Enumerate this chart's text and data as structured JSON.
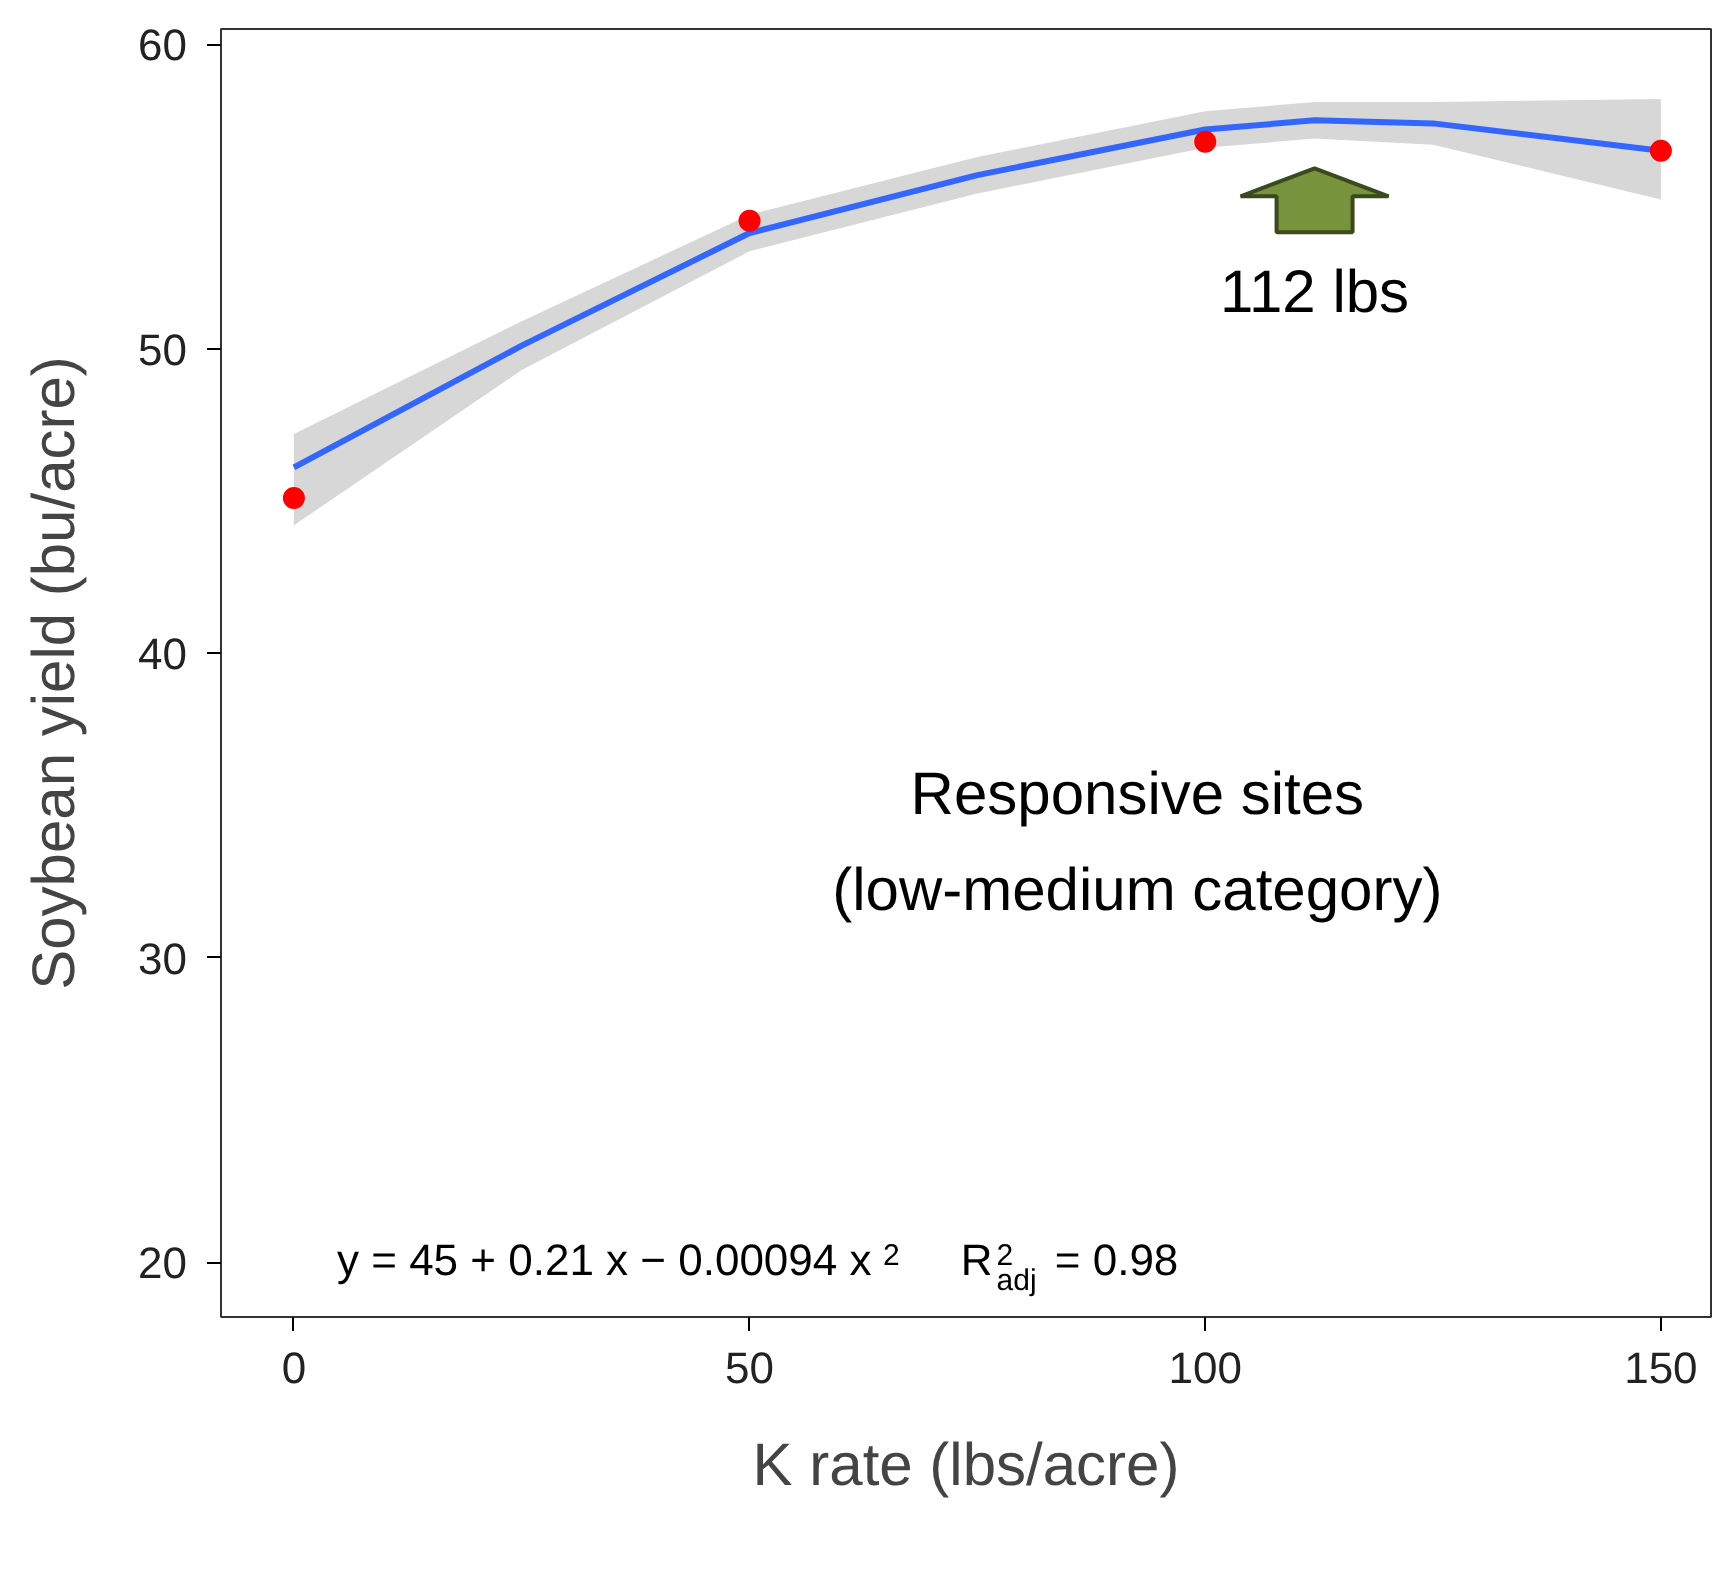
{
  "chart_data": {
    "type": "scatter",
    "xlabel": "K rate (lbs/acre)",
    "ylabel": "Soybean yield (bu/acre)",
    "xlim": [
      -8,
      155.5
    ],
    "ylim": [
      18.2,
      60.5
    ],
    "xticks": [
      0,
      50,
      100,
      150
    ],
    "yticks": [
      20,
      30,
      40,
      50,
      60
    ],
    "grid": false,
    "series": [
      {
        "type": "line",
        "color": "#3366ff",
        "x": [
          0,
          25,
          50,
          75,
          100,
          112,
          125,
          150
        ],
        "values": [
          46.1,
          50.1,
          53.8,
          55.7,
          57.2,
          57.5,
          57.4,
          56.5
        ],
        "lower": [
          44.2,
          49.3,
          53.2,
          55.1,
          56.6,
          56.9,
          56.7,
          54.9
        ],
        "upper": [
          47.2,
          50.9,
          54.4,
          56.3,
          57.8,
          58.1,
          58.1,
          58.2
        ]
      },
      {
        "marker": "circle",
        "color": "#ff0000",
        "x": [
          0,
          50,
          100,
          150
        ],
        "values": [
          45.1,
          54.2,
          56.8,
          56.5
        ]
      }
    ],
    "annotations": [
      "Responsive sites",
      "(low-medium category)",
      {
        "text": "112 lbs",
        "x": 112,
        "y": 57.5
      },
      "y = 45 + 0.21 x − 0.00094 x$^{2}$     R$^{2}$$_{adj}$ = 0.98"
    ]
  }
}
